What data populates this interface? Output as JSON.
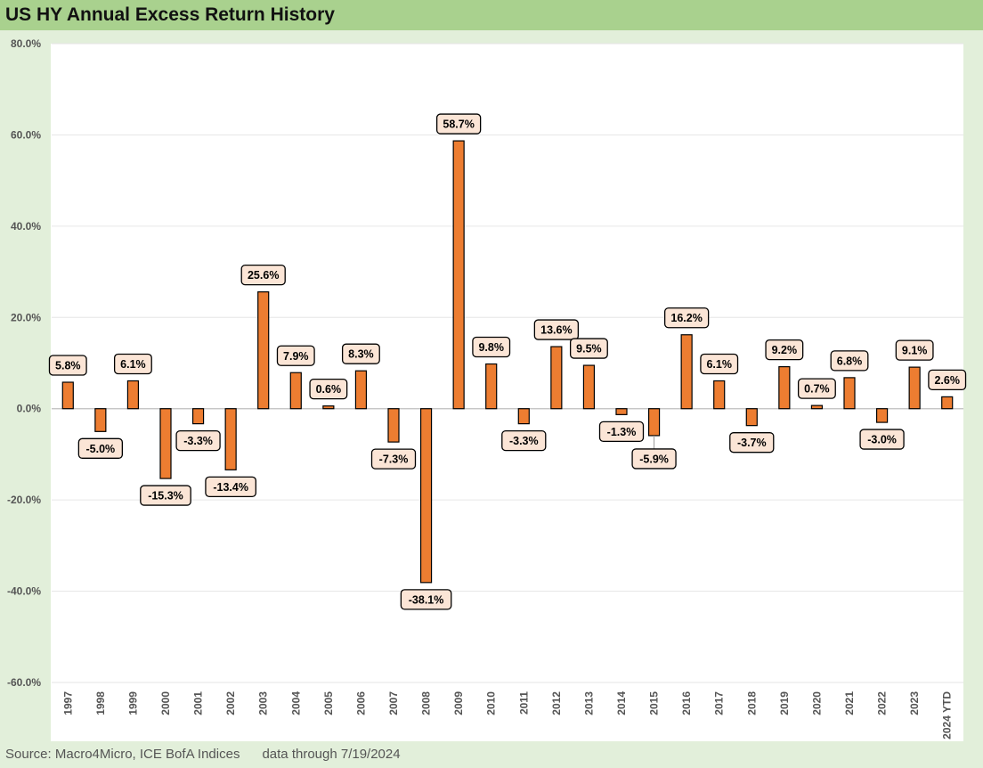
{
  "title": "US HY Annual Excess Return History",
  "footer": {
    "source": "Source: Macro4Micro, ICE BofA Indices",
    "data_through": "data through 7/19/2024"
  },
  "colors": {
    "bar": "#ed7d31",
    "label_bg": "#fbe5d6",
    "title_bar": "#a9d18e",
    "background": "#e2efda"
  },
  "chart_data": {
    "type": "bar",
    "title": "US HY Annual Excess Return History",
    "xlabel": "",
    "ylabel": "",
    "ylim": [
      -60,
      80
    ],
    "y_ticks": [
      -60,
      -40,
      -20,
      0,
      20,
      40,
      60,
      80
    ],
    "y_tick_labels": [
      "-60.0%",
      "-40.0%",
      "-20.0%",
      "0.0%",
      "20.0%",
      "40.0%",
      "60.0%",
      "80.0%"
    ],
    "grid": true,
    "legend": "none",
    "categories": [
      "1997",
      "1998",
      "1999",
      "2000",
      "2001",
      "2002",
      "2003",
      "2004",
      "2005",
      "2006",
      "2007",
      "2008",
      "2009",
      "2010",
      "2011",
      "2012",
      "2013",
      "2014",
      "2015",
      "2016",
      "2017",
      "2018",
      "2019",
      "2020",
      "2021",
      "2022",
      "2023",
      "2024 YTD"
    ],
    "values": [
      5.8,
      -5.0,
      6.1,
      -15.3,
      -3.3,
      -13.4,
      25.6,
      7.9,
      0.6,
      8.3,
      -7.3,
      -38.1,
      58.7,
      9.8,
      -3.3,
      13.6,
      9.5,
      -1.3,
      -5.9,
      16.2,
      6.1,
      -3.7,
      9.2,
      0.7,
      6.8,
      -3.0,
      9.1,
      2.6
    ],
    "data_labels": [
      "5.8%",
      "-5.0%",
      "6.1%",
      "-15.3%",
      "-3.3%",
      "-13.4%",
      "25.6%",
      "7.9%",
      "0.6%",
      "8.3%",
      "-7.3%",
      "-38.1%",
      "58.7%",
      "9.8%",
      "-3.3%",
      "13.6%",
      "9.5%",
      "-1.3%",
      "-5.9%",
      "16.2%",
      "6.1%",
      "-3.7%",
      "9.2%",
      "0.7%",
      "6.8%",
      "-3.0%",
      "9.1%",
      "2.6%"
    ]
  }
}
